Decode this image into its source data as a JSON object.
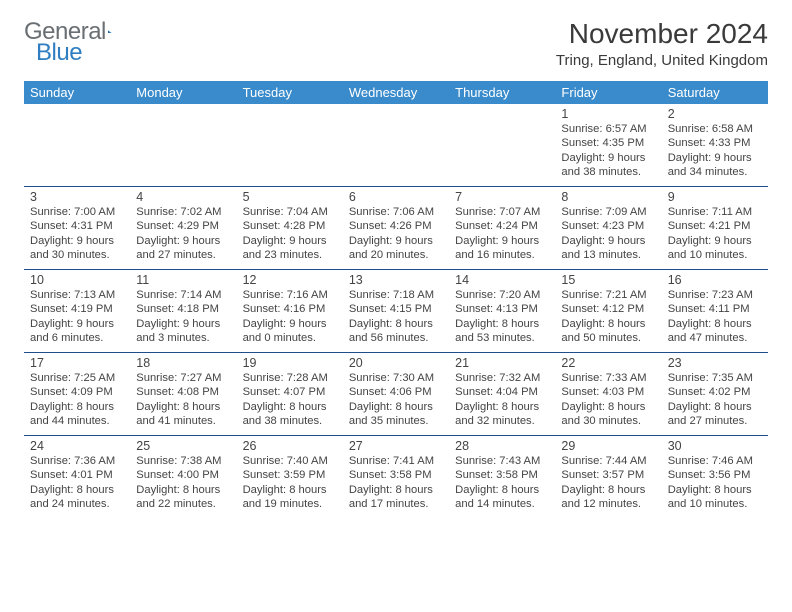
{
  "brand": {
    "name_a": "General",
    "name_b": "Blue"
  },
  "header": {
    "title": "November 2024",
    "location": "Tring, England, United Kingdom"
  },
  "colors": {
    "header_bg": "#3a8bcb",
    "header_text": "#ffffff",
    "week_border": "#1e4f8a",
    "logo_gray": "#6a6f73",
    "logo_blue": "#2f7ec2",
    "text": "#444444"
  },
  "fonts": {
    "title_size_pt": 21,
    "location_size_pt": 11,
    "dayheader_size_pt": 10,
    "daynum_size_pt": 9,
    "body_size_pt": 8
  },
  "day_names": [
    "Sunday",
    "Monday",
    "Tuesday",
    "Wednesday",
    "Thursday",
    "Friday",
    "Saturday"
  ],
  "weeks": [
    [
      {
        "day": "",
        "sunrise": "",
        "sunset": "",
        "daylight": ""
      },
      {
        "day": "",
        "sunrise": "",
        "sunset": "",
        "daylight": ""
      },
      {
        "day": "",
        "sunrise": "",
        "sunset": "",
        "daylight": ""
      },
      {
        "day": "",
        "sunrise": "",
        "sunset": "",
        "daylight": ""
      },
      {
        "day": "",
        "sunrise": "",
        "sunset": "",
        "daylight": ""
      },
      {
        "day": "1",
        "sunrise": "Sunrise: 6:57 AM",
        "sunset": "Sunset: 4:35 PM",
        "daylight": "Daylight: 9 hours and 38 minutes."
      },
      {
        "day": "2",
        "sunrise": "Sunrise: 6:58 AM",
        "sunset": "Sunset: 4:33 PM",
        "daylight": "Daylight: 9 hours and 34 minutes."
      }
    ],
    [
      {
        "day": "3",
        "sunrise": "Sunrise: 7:00 AM",
        "sunset": "Sunset: 4:31 PM",
        "daylight": "Daylight: 9 hours and 30 minutes."
      },
      {
        "day": "4",
        "sunrise": "Sunrise: 7:02 AM",
        "sunset": "Sunset: 4:29 PM",
        "daylight": "Daylight: 9 hours and 27 minutes."
      },
      {
        "day": "5",
        "sunrise": "Sunrise: 7:04 AM",
        "sunset": "Sunset: 4:28 PM",
        "daylight": "Daylight: 9 hours and 23 minutes."
      },
      {
        "day": "6",
        "sunrise": "Sunrise: 7:06 AM",
        "sunset": "Sunset: 4:26 PM",
        "daylight": "Daylight: 9 hours and 20 minutes."
      },
      {
        "day": "7",
        "sunrise": "Sunrise: 7:07 AM",
        "sunset": "Sunset: 4:24 PM",
        "daylight": "Daylight: 9 hours and 16 minutes."
      },
      {
        "day": "8",
        "sunrise": "Sunrise: 7:09 AM",
        "sunset": "Sunset: 4:23 PM",
        "daylight": "Daylight: 9 hours and 13 minutes."
      },
      {
        "day": "9",
        "sunrise": "Sunrise: 7:11 AM",
        "sunset": "Sunset: 4:21 PM",
        "daylight": "Daylight: 9 hours and 10 minutes."
      }
    ],
    [
      {
        "day": "10",
        "sunrise": "Sunrise: 7:13 AM",
        "sunset": "Sunset: 4:19 PM",
        "daylight": "Daylight: 9 hours and 6 minutes."
      },
      {
        "day": "11",
        "sunrise": "Sunrise: 7:14 AM",
        "sunset": "Sunset: 4:18 PM",
        "daylight": "Daylight: 9 hours and 3 minutes."
      },
      {
        "day": "12",
        "sunrise": "Sunrise: 7:16 AM",
        "sunset": "Sunset: 4:16 PM",
        "daylight": "Daylight: 9 hours and 0 minutes."
      },
      {
        "day": "13",
        "sunrise": "Sunrise: 7:18 AM",
        "sunset": "Sunset: 4:15 PM",
        "daylight": "Daylight: 8 hours and 56 minutes."
      },
      {
        "day": "14",
        "sunrise": "Sunrise: 7:20 AM",
        "sunset": "Sunset: 4:13 PM",
        "daylight": "Daylight: 8 hours and 53 minutes."
      },
      {
        "day": "15",
        "sunrise": "Sunrise: 7:21 AM",
        "sunset": "Sunset: 4:12 PM",
        "daylight": "Daylight: 8 hours and 50 minutes."
      },
      {
        "day": "16",
        "sunrise": "Sunrise: 7:23 AM",
        "sunset": "Sunset: 4:11 PM",
        "daylight": "Daylight: 8 hours and 47 minutes."
      }
    ],
    [
      {
        "day": "17",
        "sunrise": "Sunrise: 7:25 AM",
        "sunset": "Sunset: 4:09 PM",
        "daylight": "Daylight: 8 hours and 44 minutes."
      },
      {
        "day": "18",
        "sunrise": "Sunrise: 7:27 AM",
        "sunset": "Sunset: 4:08 PM",
        "daylight": "Daylight: 8 hours and 41 minutes."
      },
      {
        "day": "19",
        "sunrise": "Sunrise: 7:28 AM",
        "sunset": "Sunset: 4:07 PM",
        "daylight": "Daylight: 8 hours and 38 minutes."
      },
      {
        "day": "20",
        "sunrise": "Sunrise: 7:30 AM",
        "sunset": "Sunset: 4:06 PM",
        "daylight": "Daylight: 8 hours and 35 minutes."
      },
      {
        "day": "21",
        "sunrise": "Sunrise: 7:32 AM",
        "sunset": "Sunset: 4:04 PM",
        "daylight": "Daylight: 8 hours and 32 minutes."
      },
      {
        "day": "22",
        "sunrise": "Sunrise: 7:33 AM",
        "sunset": "Sunset: 4:03 PM",
        "daylight": "Daylight: 8 hours and 30 minutes."
      },
      {
        "day": "23",
        "sunrise": "Sunrise: 7:35 AM",
        "sunset": "Sunset: 4:02 PM",
        "daylight": "Daylight: 8 hours and 27 minutes."
      }
    ],
    [
      {
        "day": "24",
        "sunrise": "Sunrise: 7:36 AM",
        "sunset": "Sunset: 4:01 PM",
        "daylight": "Daylight: 8 hours and 24 minutes."
      },
      {
        "day": "25",
        "sunrise": "Sunrise: 7:38 AM",
        "sunset": "Sunset: 4:00 PM",
        "daylight": "Daylight: 8 hours and 22 minutes."
      },
      {
        "day": "26",
        "sunrise": "Sunrise: 7:40 AM",
        "sunset": "Sunset: 3:59 PM",
        "daylight": "Daylight: 8 hours and 19 minutes."
      },
      {
        "day": "27",
        "sunrise": "Sunrise: 7:41 AM",
        "sunset": "Sunset: 3:58 PM",
        "daylight": "Daylight: 8 hours and 17 minutes."
      },
      {
        "day": "28",
        "sunrise": "Sunrise: 7:43 AM",
        "sunset": "Sunset: 3:58 PM",
        "daylight": "Daylight: 8 hours and 14 minutes."
      },
      {
        "day": "29",
        "sunrise": "Sunrise: 7:44 AM",
        "sunset": "Sunset: 3:57 PM",
        "daylight": "Daylight: 8 hours and 12 minutes."
      },
      {
        "day": "30",
        "sunrise": "Sunrise: 7:46 AM",
        "sunset": "Sunset: 3:56 PM",
        "daylight": "Daylight: 8 hours and 10 minutes."
      }
    ]
  ]
}
